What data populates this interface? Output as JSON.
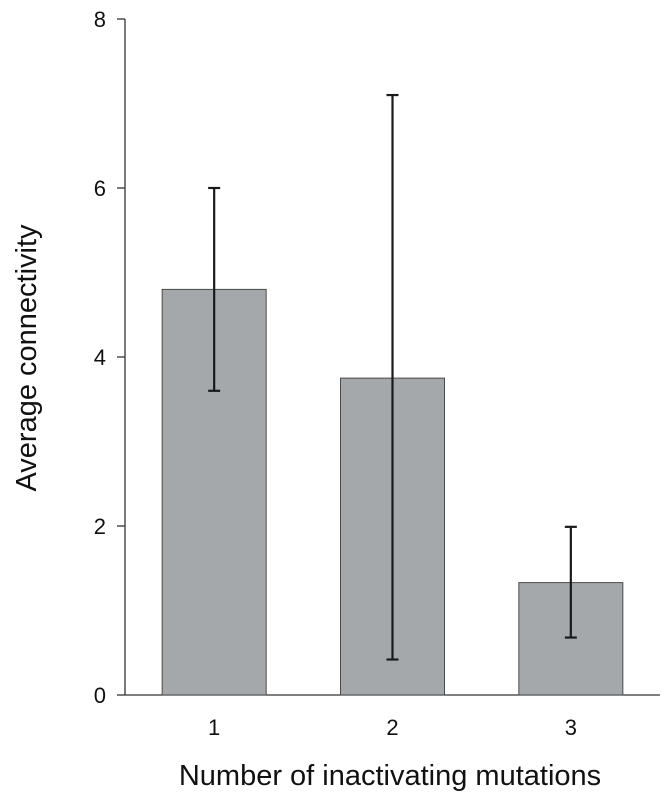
{
  "chart_data": {
    "type": "bar",
    "title": "",
    "xlabel": "Number of inactivating mutations",
    "ylabel": "Average connectivity",
    "categories": [
      "1",
      "2",
      "3"
    ],
    "values": [
      4.8,
      3.75,
      1.33
    ],
    "error_low": [
      3.6,
      0.42,
      0.68
    ],
    "error_high": [
      6.0,
      7.1,
      1.99
    ],
    "ylim": [
      0,
      8
    ],
    "yticks": [
      0,
      2,
      4,
      6,
      8
    ],
    "grid": false,
    "legend": "none",
    "bar_color": "#a5a8aa",
    "bar_edge_color": "#4a4a4a"
  }
}
